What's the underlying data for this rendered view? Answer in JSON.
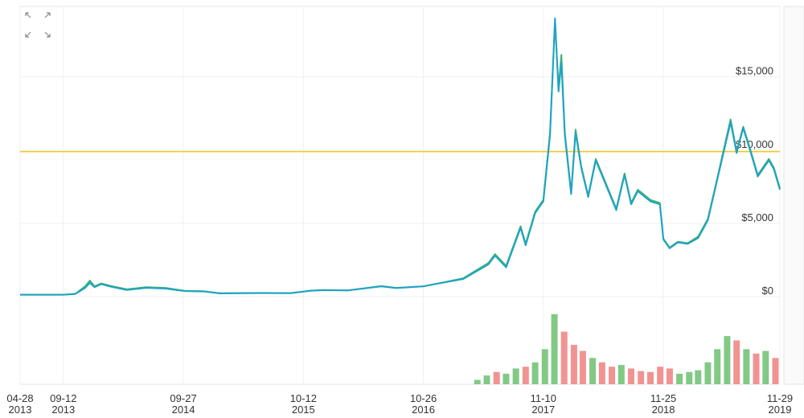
{
  "chart_data": {
    "type": "line",
    "x": [
      "2013-04-28",
      "2013-09-12",
      "2013-10-20",
      "2013-11-20",
      "2013-12-05",
      "2013-12-20",
      "2014-01-10",
      "2014-02-15",
      "2014-04-01",
      "2014-06-01",
      "2014-08-01",
      "2014-10-01",
      "2014-12-01",
      "2015-01-20",
      "2015-06-01",
      "2015-09-01",
      "2015-11-05",
      "2015-12-15",
      "2016-03-01",
      "2016-06-15",
      "2016-08-01",
      "2016-10-26",
      "2017-01-01",
      "2017-03-01",
      "2017-05-20",
      "2017-06-10",
      "2017-07-15",
      "2017-08-30",
      "2017-09-15",
      "2017-10-15",
      "2017-11-10",
      "2017-12-01",
      "2017-12-17",
      "2017-12-28",
      "2018-01-06",
      "2018-01-17",
      "2018-02-06",
      "2018-02-20",
      "2018-03-10",
      "2018-04-01",
      "2018-04-25",
      "2018-05-20",
      "2018-06-29",
      "2018-07-25",
      "2018-08-15",
      "2018-09-05",
      "2018-10-15",
      "2018-11-14",
      "2018-11-25",
      "2018-12-15",
      "2019-01-10",
      "2019-02-10",
      "2019-03-15",
      "2019-04-15",
      "2019-05-15",
      "2019-06-26",
      "2019-07-15",
      "2019-08-05",
      "2019-08-25",
      "2019-09-20",
      "2019-10-25",
      "2019-11-10",
      "2019-11-29"
    ],
    "series": [
      {
        "color": "#3cb371",
        "values": [
          130,
          130,
          190,
          700,
          1100,
          700,
          900,
          700,
          500,
          650,
          600,
          400,
          370,
          230,
          250,
          240,
          410,
          450,
          430,
          720,
          600,
          710,
          990,
          1250,
          2300,
          2900,
          2100,
          4800,
          3600,
          5800,
          6600,
          11200,
          18800,
          14200,
          16500,
          11200,
          7100,
          11400,
          8900,
          6900,
          9400,
          8100,
          6000,
          8400,
          6400,
          7300,
          6600,
          6400,
          3950,
          3350,
          3750,
          3650,
          4100,
          5300,
          8100,
          12100,
          9900,
          11600,
          10200,
          8300,
          9400,
          8800,
          7400
        ]
      },
      {
        "color": "#1fa3c4",
        "values": [
          130,
          130,
          180,
          600,
          930,
          650,
          850,
          650,
          450,
          600,
          550,
          380,
          350,
          220,
          240,
          230,
          400,
          440,
          420,
          700,
          580,
          700,
          970,
          1200,
          2200,
          2800,
          2000,
          4700,
          3500,
          5700,
          6500,
          11000,
          19000,
          14000,
          16000,
          11000,
          7000,
          11200,
          8800,
          6800,
          9300,
          8000,
          5900,
          8300,
          6300,
          7200,
          6500,
          6300,
          3900,
          3300,
          3700,
          3600,
          4000,
          5200,
          8000,
          11900,
          9800,
          11500,
          10100,
          8200,
          9300,
          8700,
          7300
        ]
      }
    ],
    "ylim": [
      0,
      19700
    ],
    "yticks": [
      {
        "value": 0,
        "label": "$0"
      },
      {
        "value": 5000,
        "label": "$5,000"
      },
      {
        "value": 10000,
        "label": "$10,000"
      },
      {
        "value": 15000,
        "label": "$15,000"
      }
    ],
    "grid": true,
    "reference_line": {
      "value": 9900,
      "color": "#f5c518"
    },
    "xlim": [
      "2013-04-28",
      "2019-11-29"
    ],
    "xticks": [
      {
        "value": "2013-04-28",
        "label": [
          "04-28",
          "2013"
        ]
      },
      {
        "value": "2013-09-12",
        "label": [
          "09-12",
          "2013"
        ]
      },
      {
        "value": "2014-09-27",
        "label": [
          "09-27",
          "2014"
        ]
      },
      {
        "value": "2015-10-12",
        "label": [
          "10-12",
          "2015"
        ]
      },
      {
        "value": "2016-10-26",
        "label": [
          "10-26",
          "2016"
        ]
      },
      {
        "value": "2017-11-10",
        "label": [
          "11-10",
          "2017"
        ]
      },
      {
        "value": "2018-11-25",
        "label": [
          "11-25",
          "2018"
        ]
      },
      {
        "value": "2019-11-29",
        "label": [
          "11-29",
          "2019"
        ]
      }
    ],
    "volume": {
      "x": [
        "2017-04-15",
        "2017-05-15",
        "2017-06-15",
        "2017-07-15",
        "2017-08-15",
        "2017-09-15",
        "2017-10-15",
        "2017-11-15",
        "2017-12-15",
        "2018-01-15",
        "2018-02-15",
        "2018-03-15",
        "2018-04-15",
        "2018-05-15",
        "2018-06-15",
        "2018-07-15",
        "2018-08-15",
        "2018-09-15",
        "2018-10-15",
        "2018-11-15",
        "2018-12-15",
        "2019-01-15",
        "2019-02-15",
        "2019-03-15",
        "2019-04-15",
        "2019-05-15",
        "2019-06-15",
        "2019-07-15",
        "2019-08-15",
        "2019-09-15",
        "2019-10-15",
        "2019-11-15"
      ],
      "values": [
        5,
        10,
        14,
        12,
        18,
        20,
        25,
        40,
        80,
        60,
        45,
        38,
        30,
        25,
        20,
        22,
        18,
        15,
        14,
        20,
        18,
        12,
        14,
        16,
        25,
        40,
        55,
        50,
        40,
        35,
        38,
        30
      ],
      "colors": [
        "#6cc070",
        "#6cc070",
        "#f08080",
        "#6cc070",
        "#6cc070",
        "#f08080",
        "#6cc070",
        "#6cc070",
        "#6cc070",
        "#f08080",
        "#f08080",
        "#f08080",
        "#6cc070",
        "#f08080",
        "#f08080",
        "#6cc070",
        "#f08080",
        "#f08080",
        "#f08080",
        "#f08080",
        "#f08080",
        "#6cc070",
        "#6cc070",
        "#6cc070",
        "#6cc070",
        "#6cc070",
        "#6cc070",
        "#f08080",
        "#6cc070",
        "#f08080",
        "#6cc070",
        "#f08080"
      ],
      "ylim": [
        0,
        100
      ]
    }
  }
}
